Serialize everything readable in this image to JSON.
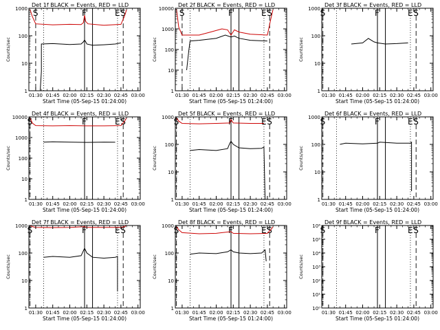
{
  "colors": {
    "events": "#000000",
    "lld": "#cc0000",
    "background": "#ffffff"
  },
  "chart_data": [
    {
      "type": "line",
      "title": "Det 1f BLACK = Events, RED = LLD",
      "xlabel": "Start Time (05-Sep-15 01:24:00)",
      "ylabel": "Counts/sec",
      "y_scale": "log",
      "ylim": [
        1,
        1000
      ],
      "ytick_labels": [
        "1",
        "10",
        "100",
        "1000"
      ],
      "x_range": [
        "01:24",
        "03:02"
      ],
      "xtick_labels": [
        "01:30",
        "01:45",
        "02:00",
        "02:15",
        "02:30",
        "02:45",
        "03:00"
      ],
      "vertical_markers": [
        {
          "label": "S",
          "time": "01:30",
          "style": "dashed"
        },
        {
          "label": "",
          "time": "01:37",
          "style": "dotted"
        },
        {
          "label": "F",
          "time": "02:13",
          "style": "solid"
        },
        {
          "label": "",
          "time": "02:20",
          "style": "solid"
        },
        {
          "label": "E",
          "time": "02:42",
          "style": "dotted"
        },
        {
          "label": "S",
          "time": "02:47",
          "style": "dashed"
        }
      ],
      "series": [
        {
          "name": "Events",
          "color": "#000000",
          "x": [
            "01:34",
            "01:35",
            "01:35",
            "01:45",
            "02:00",
            "02:10",
            "02:12",
            "02:13",
            "02:14",
            "02:15",
            "02:20",
            "02:30",
            "02:40",
            "02:45"
          ],
          "y": [
            1,
            5,
            50,
            52,
            48,
            50,
            60,
            70,
            60,
            50,
            45,
            47,
            50,
            55
          ]
        },
        {
          "name": "LLD",
          "color": "#cc0000",
          "x": [
            "01:25",
            "01:27",
            "01:30",
            "01:45",
            "02:00",
            "02:10",
            "02:12",
            "02:13",
            "02:14",
            "02:16",
            "02:30",
            "02:45",
            "02:48",
            "02:50"
          ],
          "y": [
            900,
            500,
            270,
            250,
            260,
            255,
            300,
            560,
            330,
            270,
            240,
            260,
            500,
            900
          ]
        }
      ]
    },
    {
      "type": "line",
      "title": "Det 2f BLACK = Events, RED = LLD",
      "xlabel": "Start Time (05-Sep-15 01:24:00)",
      "ylabel": "Counts/sec",
      "y_scale": "log",
      "ylim": [
        1,
        10000
      ],
      "ytick_labels": [
        "1",
        "10",
        "100",
        "1000",
        "10000"
      ],
      "x_range": [
        "01:24",
        "03:02"
      ],
      "xtick_labels": [
        "01:30",
        "01:45",
        "02:00",
        "02:15",
        "02:30",
        "02:45",
        "03:00"
      ],
      "vertical_markers": [
        {
          "label": "S",
          "time": "01:30",
          "style": "dashed"
        },
        {
          "label": "",
          "time": "01:37",
          "style": "dotted"
        },
        {
          "label": "F",
          "time": "02:13",
          "style": "solid"
        },
        {
          "label": "",
          "time": "02:20",
          "style": "solid"
        },
        {
          "label": "E",
          "time": "02:42",
          "style": "dotted"
        },
        {
          "label": "S",
          "time": "02:47",
          "style": "dashed"
        }
      ],
      "series": [
        {
          "name": "Events",
          "color": "#000000",
          "x": [
            "01:34",
            "01:36",
            "01:37",
            "01:45",
            "02:00",
            "02:08",
            "02:13",
            "02:16",
            "02:20",
            "02:30",
            "02:45"
          ],
          "y": [
            10,
            100,
            260,
            280,
            350,
            500,
            400,
            450,
            350,
            280,
            260
          ]
        },
        {
          "name": "LLD",
          "color": "#cc0000",
          "x": [
            "01:25",
            "01:27",
            "01:30",
            "01:45",
            "01:55",
            "02:05",
            "02:10",
            "02:13",
            "02:16",
            "02:20",
            "02:30",
            "02:45",
            "02:48",
            "02:50"
          ],
          "y": [
            9000,
            1200,
            500,
            500,
            700,
            1000,
            900,
            500,
            900,
            700,
            550,
            500,
            3000,
            9000
          ]
        }
      ]
    },
    {
      "type": "line",
      "title": "Det 3f BLACK = Events, RED = LLD",
      "xlabel": "Start Time (05-Sep-15 01:24:00)",
      "ylabel": "Counts/sec",
      "y_scale": "log",
      "ylim": [
        1,
        1000
      ],
      "ytick_labels": [
        "1",
        "10",
        "100",
        "1000"
      ],
      "x_range": [
        "01:24",
        "03:02"
      ],
      "xtick_labels": [
        "01:30",
        "01:45",
        "02:00",
        "02:15",
        "02:30",
        "02:45",
        "03:00"
      ],
      "vertical_markers": [
        {
          "label": "S",
          "time": "01:25",
          "style": "dashed"
        },
        {
          "label": "",
          "time": "01:37",
          "style": "dotted"
        },
        {
          "label": "F",
          "time": "02:13",
          "style": "solid"
        },
        {
          "label": "",
          "time": "02:20",
          "style": "solid"
        },
        {
          "label": "E",
          "time": "02:42",
          "style": "dotted"
        },
        {
          "label": "S",
          "time": "02:47",
          "style": "dashed"
        }
      ],
      "series": [
        {
          "name": "Events",
          "color": "#000000",
          "x": [
            "01:50",
            "02:00",
            "02:05",
            "02:10",
            "02:13",
            "02:20",
            "02:30",
            "02:40"
          ],
          "y": [
            50,
            55,
            80,
            60,
            55,
            50,
            52,
            55
          ]
        }
      ]
    },
    {
      "type": "line",
      "title": "Det 4f BLACK = Events, RED = LLD",
      "xlabel": "Start Time (05-Sep-15 01:24:00)",
      "ylabel": "Counts/sec",
      "y_scale": "log",
      "ylim": [
        1,
        10000
      ],
      "ytick_labels": [
        "1",
        "10",
        "100",
        "1000",
        "10000"
      ],
      "x_range": [
        "01:24",
        "03:02"
      ],
      "xtick_labels": [
        "01:30",
        "01:45",
        "02:00",
        "02:15",
        "02:30",
        "02:45",
        "03:00"
      ],
      "vertical_markers": [
        {
          "label": "S",
          "time": "01:25",
          "style": "dashed"
        },
        {
          "label": "",
          "time": "01:37",
          "style": "dotted"
        },
        {
          "label": "F",
          "time": "02:13",
          "style": "solid"
        },
        {
          "label": "",
          "time": "02:20",
          "style": "solid"
        },
        {
          "label": "E",
          "time": "02:42",
          "style": "dotted"
        },
        {
          "label": "S",
          "time": "02:47",
          "style": "dashed"
        }
      ],
      "series": [
        {
          "name": "Events",
          "color": "#000000",
          "x": [
            "01:37",
            "01:45",
            "02:00",
            "02:15",
            "02:30",
            "02:40"
          ],
          "y": [
            600,
            620,
            600,
            580,
            600,
            590
          ]
        },
        {
          "name": "LLD",
          "color": "#cc0000",
          "x": [
            "01:25",
            "01:27",
            "01:30",
            "01:45",
            "02:00",
            "02:15",
            "02:30",
            "02:45",
            "02:48",
            "02:50"
          ],
          "y": [
            9000,
            5000,
            3800,
            3700,
            3800,
            3700,
            3700,
            3800,
            6000,
            9000
          ]
        }
      ]
    },
    {
      "type": "line",
      "title": "Det 5f BLACK = Events, RED = LLD",
      "xlabel": "Start Time (05-Sep-15 01:24:00)",
      "ylabel": "Counts/sec",
      "y_scale": "log",
      "ylim": [
        1,
        1000
      ],
      "ytick_labels": [
        "1",
        "10",
        "100",
        "1000"
      ],
      "x_range": [
        "01:24",
        "03:02"
      ],
      "xtick_labels": [
        "01:30",
        "01:45",
        "02:00",
        "02:15",
        "02:30",
        "02:45",
        "03:00"
      ],
      "vertical_markers": [
        {
          "label": "S",
          "time": "01:25",
          "style": "dashed"
        },
        {
          "label": "",
          "time": "01:37",
          "style": "dotted"
        },
        {
          "label": "F",
          "time": "02:13",
          "style": "solid"
        },
        {
          "label": "",
          "time": "02:20",
          "style": "solid"
        },
        {
          "label": "E",
          "time": "02:42",
          "style": "dotted"
        },
        {
          "label": "S",
          "time": "02:47",
          "style": "dashed"
        }
      ],
      "series": [
        {
          "name": "Events",
          "color": "#000000",
          "x": [
            "01:37",
            "01:45",
            "02:00",
            "02:10",
            "02:12",
            "02:13",
            "02:15",
            "02:20",
            "02:30",
            "02:40",
            "02:42",
            "02:43"
          ],
          "y": [
            60,
            65,
            60,
            70,
            110,
            130,
            100,
            75,
            70,
            72,
            80,
            1
          ]
        },
        {
          "name": "LLD",
          "color": "#cc0000",
          "x": [
            "01:25",
            "01:27",
            "01:30",
            "01:45",
            "02:00",
            "02:12",
            "02:13",
            "02:15",
            "02:30",
            "02:42"
          ],
          "y": [
            900,
            700,
            580,
            560,
            580,
            600,
            800,
            600,
            580,
            580
          ]
        }
      ]
    },
    {
      "type": "line",
      "title": "Det 6f BLACK = Events, RED = LLD",
      "xlabel": "Start Time (05-Sep-15 01:24:00)",
      "ylabel": "Counts/sec",
      "y_scale": "log",
      "ylim": [
        1,
        1000
      ],
      "ytick_labels": [
        "1",
        "10",
        "100",
        "1000"
      ],
      "x_range": [
        "01:24",
        "03:02"
      ],
      "xtick_labels": [
        "01:30",
        "01:45",
        "02:00",
        "02:15",
        "02:30",
        "02:45",
        "03:00"
      ],
      "vertical_markers": [
        {
          "label": "S",
          "time": "01:25",
          "style": "dashed"
        },
        {
          "label": "",
          "time": "01:37",
          "style": "dotted"
        },
        {
          "label": "F",
          "time": "02:13",
          "style": "solid"
        },
        {
          "label": "",
          "time": "02:20",
          "style": "solid"
        },
        {
          "label": "E",
          "time": "02:42",
          "style": "dotted"
        },
        {
          "label": "S",
          "time": "02:47",
          "style": "dashed"
        }
      ],
      "series": [
        {
          "name": "Events",
          "color": "#000000",
          "x": [
            "01:40",
            "01:45",
            "02:00",
            "02:13",
            "02:15",
            "02:30",
            "02:42",
            "02:43",
            "02:43"
          ],
          "y": [
            100,
            110,
            105,
            110,
            120,
            110,
            110,
            120,
            2
          ]
        }
      ]
    },
    {
      "type": "line",
      "title": "Det 7f BLACK = Events, RED = LLD",
      "xlabel": "Start Time (05-Sep-15 01:24:00)",
      "ylabel": "Counts/sec",
      "y_scale": "log",
      "ylim": [
        1,
        1000
      ],
      "ytick_labels": [
        "1",
        "10",
        "100",
        "1000"
      ],
      "x_range": [
        "01:24",
        "03:02"
      ],
      "xtick_labels": [
        "01:30",
        "01:45",
        "02:00",
        "02:15",
        "02:30",
        "02:45",
        "03:00"
      ],
      "vertical_markers": [
        {
          "label": "S",
          "time": "01:25",
          "style": "dashed"
        },
        {
          "label": "",
          "time": "01:37",
          "style": "dotted"
        },
        {
          "label": "F",
          "time": "02:13",
          "style": "solid"
        },
        {
          "label": "",
          "time": "02:20",
          "style": "solid"
        },
        {
          "label": "E",
          "time": "02:42",
          "style": "dotted"
        },
        {
          "label": "S",
          "time": "02:47",
          "style": "dashed"
        }
      ],
      "series": [
        {
          "name": "Events",
          "color": "#000000",
          "x": [
            "01:37",
            "01:45",
            "02:00",
            "02:10",
            "02:13",
            "02:15",
            "02:20",
            "02:30",
            "02:40",
            "02:42",
            "02:42"
          ],
          "y": [
            70,
            75,
            70,
            80,
            150,
            100,
            70,
            65,
            70,
            75,
            4
          ]
        },
        {
          "name": "LLD",
          "color": "#cc0000",
          "x": [
            "01:25",
            "01:27",
            "01:30",
            "01:45",
            "02:00",
            "02:13",
            "02:15",
            "02:30",
            "02:45",
            "02:48",
            "02:50"
          ],
          "y": [
            1000,
            900,
            850,
            840,
            850,
            900,
            850,
            850,
            850,
            900,
            1000
          ]
        }
      ]
    },
    {
      "type": "line",
      "title": "Det 8f BLACK = Events, RED = LLD",
      "xlabel": "Start Time (05-Sep-15 01:24:00)",
      "ylabel": "Counts/sec",
      "y_scale": "log",
      "ylim": [
        1,
        1000
      ],
      "ytick_labels": [
        "1",
        "10",
        "100",
        "1000"
      ],
      "x_range": [
        "01:24",
        "03:02"
      ],
      "xtick_labels": [
        "01:30",
        "01:45",
        "02:00",
        "02:15",
        "02:30",
        "02:45",
        "03:00"
      ],
      "vertical_markers": [
        {
          "label": "S",
          "time": "01:25",
          "style": "dashed"
        },
        {
          "label": "",
          "time": "01:37",
          "style": "dotted"
        },
        {
          "label": "F",
          "time": "02:13",
          "style": "solid"
        },
        {
          "label": "",
          "time": "02:20",
          "style": "solid"
        },
        {
          "label": "E",
          "time": "02:42",
          "style": "dotted"
        },
        {
          "label": "S",
          "time": "02:47",
          "style": "dashed"
        }
      ],
      "series": [
        {
          "name": "Events",
          "color": "#000000",
          "x": [
            "01:37",
            "01:45",
            "02:00",
            "02:10",
            "02:13",
            "02:15",
            "02:20",
            "02:30",
            "02:40",
            "02:43",
            "02:44"
          ],
          "y": [
            90,
            100,
            95,
            110,
            130,
            110,
            100,
            95,
            100,
            130,
            50
          ]
        },
        {
          "name": "LLD",
          "color": "#cc0000",
          "x": [
            "01:25",
            "01:27",
            "01:30",
            "01:45",
            "02:00",
            "02:13",
            "02:15",
            "02:30",
            "02:45",
            "02:48",
            "02:50"
          ],
          "y": [
            900,
            700,
            550,
            500,
            520,
            600,
            520,
            500,
            520,
            700,
            900
          ]
        }
      ]
    },
    {
      "type": "line",
      "title": "Det 9f BLACK = Events, RED = LLD",
      "xlabel": "Start Time (05-Sep-15 01:24:00)",
      "ylabel": "Counts/sec",
      "y_scale": "log",
      "ylim": [
        1,
        1000000
      ],
      "ytick_labels": [
        "10⁰",
        "10¹",
        "10²",
        "10³",
        "10⁴",
        "10⁵",
        "10⁶"
      ],
      "x_range": [
        "01:24",
        "03:02"
      ],
      "xtick_labels": [
        "01:30",
        "01:45",
        "02:00",
        "02:15",
        "02:30",
        "02:45",
        "03:00"
      ],
      "vertical_markers": [
        {
          "label": "S",
          "time": "01:25",
          "style": "dashed"
        },
        {
          "label": "",
          "time": "01:37",
          "style": "dotted"
        },
        {
          "label": "F",
          "time": "02:13",
          "style": "solid"
        },
        {
          "label": "",
          "time": "02:20",
          "style": "solid"
        },
        {
          "label": "E",
          "time": "02:42",
          "style": "dotted"
        },
        {
          "label": "S",
          "time": "02:47",
          "style": "dashed"
        }
      ],
      "series": []
    }
  ]
}
